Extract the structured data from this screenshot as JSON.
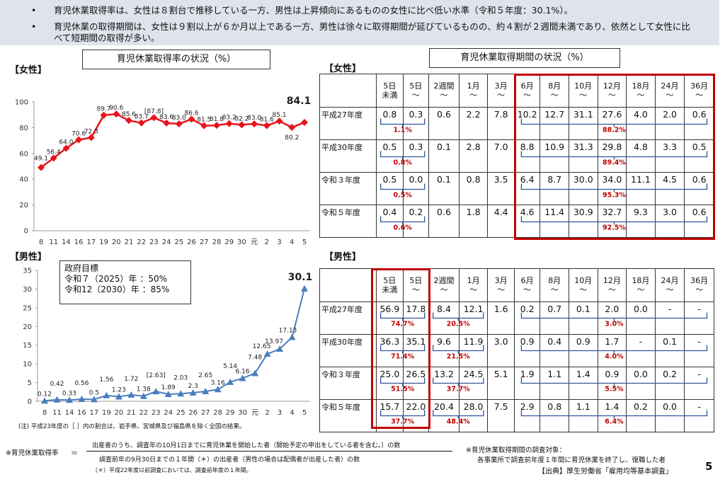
{
  "header": {
    "bullet_mark": "•",
    "bullets": [
      "育児休業取得率は、女性は８割台で推移している一方、男性は上昇傾向にあるものの女性に比べ低い水準（令和５年度：30.1%）。",
      "育児休業の取得期間は、女性は９割以上が６か月以上である一方、男性は徐々に取得期間が延びているものの、約４割が２週間未満であり、依然として女性に比べて短期間の取得が多い。"
    ]
  },
  "left": {
    "title": "育児休業取得率の状況（%）",
    "female_label": "【女性】",
    "male_label": "【男性】",
    "goal": {
      "heading": "政府目標",
      "line1": "令和７（2025）年 ：50%",
      "line2": "令和12（2030）年 ：85%"
    },
    "note": "(注)  平成23年度の［ ］内の割合は、岩手県、宮城県及び福島県を除く全国の結果。"
  },
  "chart_data": [
    {
      "type": "line",
      "categories": [
        "8",
        "11",
        "14",
        "16",
        "17",
        "19",
        "20",
        "21",
        "22",
        "23",
        "24",
        "25",
        "26",
        "27",
        "28",
        "29",
        "30",
        "元",
        "2",
        "3",
        "4",
        "5"
      ],
      "series": [
        {
          "values": [
            49.1,
            56.4,
            64.0,
            70.6,
            72.3,
            89.7,
            90.6,
            85.6,
            83.7,
            87.8,
            83.6,
            83.0,
            86.6,
            81.5,
            81.8,
            83.2,
            82.2,
            83.0,
            81.6,
            85.1,
            80.2,
            84.1
          ]
        }
      ],
      "value_labels": [
        "49.1",
        "56.4",
        "64.0",
        "70.6",
        "72.3",
        "89.7",
        "90.6",
        "85.6",
        "83.7",
        "[87.8]",
        "83.6",
        "83.0",
        "86.6",
        "81.5",
        "81.8",
        "83.2",
        "82.2",
        "83.0",
        "81.6",
        "85.1",
        "80.2",
        "84.1"
      ],
      "yticks": [
        "0",
        "20",
        "40",
        "60",
        "80",
        "100"
      ],
      "ylim": [
        0,
        100
      ],
      "color": "#e8141c"
    },
    {
      "type": "line",
      "categories": [
        "8",
        "11",
        "14",
        "16",
        "17",
        "19",
        "20",
        "21",
        "22",
        "23",
        "24",
        "25",
        "26",
        "27",
        "28",
        "29",
        "30",
        "元",
        "2",
        "3",
        "4",
        "5"
      ],
      "series": [
        {
          "values": [
            0.12,
            0.42,
            0.33,
            0.56,
            0.5,
            1.56,
            1.23,
            1.72,
            1.38,
            2.63,
            1.89,
            2.03,
            2.3,
            2.65,
            3.16,
            5.14,
            6.16,
            7.48,
            12.65,
            13.97,
            17.13,
            30.1
          ]
        }
      ],
      "value_labels": [
        "0.12",
        "0.42",
        "0.33",
        "0.56",
        "0.5",
        "1.56",
        "1.23",
        "1.72",
        "1.38",
        "[2.63]",
        "1.89",
        "2.03",
        "2.3",
        "2.65",
        "3.16",
        "5.14",
        "6.16",
        "7.48",
        "12.65",
        "13.97",
        "17.13",
        "30.1"
      ],
      "yticks": [
        "0",
        "5",
        "10",
        "15",
        "20",
        "25",
        "30",
        "35"
      ],
      "ylim": [
        0,
        35
      ],
      "color": "#4a7ebb"
    },
    {
      "type": "table",
      "title": "育児休業取得期間の状況（%）",
      "label": "【女性】",
      "headers": [
        "5日\n未満",
        "5日\n〜",
        "2週間\n〜",
        "1月\n〜",
        "3月\n〜",
        "6月\n〜",
        "8月\n〜",
        "10月\n〜",
        "12月\n〜",
        "18月\n〜",
        "24月\n〜",
        "36月\n〜"
      ],
      "rows": [
        {
          "label": "平成27年度",
          "values": [
            "0.8",
            "0.3",
            "0.6",
            "2.2",
            "7.8",
            "10.2",
            "12.7",
            "31.1",
            "27.6",
            "4.0",
            "2.0",
            "0.6"
          ],
          "short_sum": "1.1%",
          "long_sum": "88.2%"
        },
        {
          "label": "平成30年度",
          "values": [
            "0.5",
            "0.3",
            "0.1",
            "2.8",
            "7.0",
            "8.8",
            "10.9",
            "31.3",
            "29.8",
            "4.8",
            "3.3",
            "0.5"
          ],
          "short_sum": "0.8%",
          "long_sum": "89.4%"
        },
        {
          "label": "令和３年度",
          "values": [
            "0.5",
            "0.0",
            "0.1",
            "0.8",
            "3.5",
            "6.4",
            "8.7",
            "30.0",
            "34.0",
            "11.1",
            "4.5",
            "0.6"
          ],
          "short_sum": "0.5%",
          "long_sum": "95.3%"
        },
        {
          "label": "令和５年度",
          "values": [
            "0.4",
            "0.2",
            "0.6",
            "1.8",
            "4.4",
            "4.6",
            "11.4",
            "30.9",
            "32.7",
            "9.3",
            "3.0",
            "0.6"
          ],
          "short_sum": "0.6%",
          "long_sum": "92.5%"
        }
      ]
    },
    {
      "type": "table",
      "label": "【男性】",
      "headers": [
        "5日\n未満",
        "5日\n〜",
        "2週間\n〜",
        "1月\n〜",
        "3月\n〜",
        "6月\n〜",
        "8月\n〜",
        "10月\n〜",
        "12月\n〜",
        "18月\n〜",
        "24月\n〜",
        "36月\n〜"
      ],
      "rows": [
        {
          "label": "平成27年度",
          "values": [
            "56.9",
            "17.8",
            "8.4",
            "12.1",
            "1.6",
            "0.2",
            "0.7",
            "0.1",
            "2.0",
            "0.0",
            "-",
            "-"
          ],
          "short_sum": "74.7%",
          "mid_sum": "20.5%",
          "long_sum": "3.0%"
        },
        {
          "label": "平成30年度",
          "values": [
            "36.3",
            "35.1",
            "9.6",
            "11.9",
            "3.0",
            "0.9",
            "0.4",
            "0.9",
            "1.7",
            "-",
            "0.1",
            "-"
          ],
          "short_sum": "71.4%",
          "mid_sum": "21.5%",
          "long_sum": "4.0%"
        },
        {
          "label": "令和３年度",
          "values": [
            "25.0",
            "26.5",
            "13.2",
            "24.5",
            "5.1",
            "1.9",
            "1.1",
            "1.4",
            "0.9",
            "0.0",
            "0.2",
            "-"
          ],
          "short_sum": "51.5%",
          "mid_sum": "37.7%",
          "long_sum": "5.5%"
        },
        {
          "label": "令和５年度",
          "values": [
            "15.7",
            "22.0",
            "20.4",
            "28.0",
            "7.5",
            "2.9",
            "0.8",
            "1.1",
            "1.4",
            "0.2",
            "0.0",
            "-"
          ],
          "short_sum": "37.7%",
          "mid_sum": "48.4%",
          "long_sum": "6.4%"
        }
      ]
    }
  ],
  "footer": {
    "rate_label": "※育児休業取得率",
    "equals": "＝",
    "numerator": "出産者のうち、調査年の10月1日までに育児休業を開始した者（開始予定の申出をしている者を含む。）の数",
    "denominator": "調査前年の9月30日までの１年間（＊）の出産者（男性の場合は配偶者が出産した者）の数",
    "asterisk_note": "（＊）平成22年度以前調査においては、調査前年度の１年間。",
    "survey_target_label": "※育児休業取得期間の調査対象：",
    "survey_target_text": "各事業所で調査前年度１年間に育児休業を終了し、復職した者",
    "source": "【出典】厚生労働省「雇用均等基本調査」",
    "page_number": "5"
  }
}
